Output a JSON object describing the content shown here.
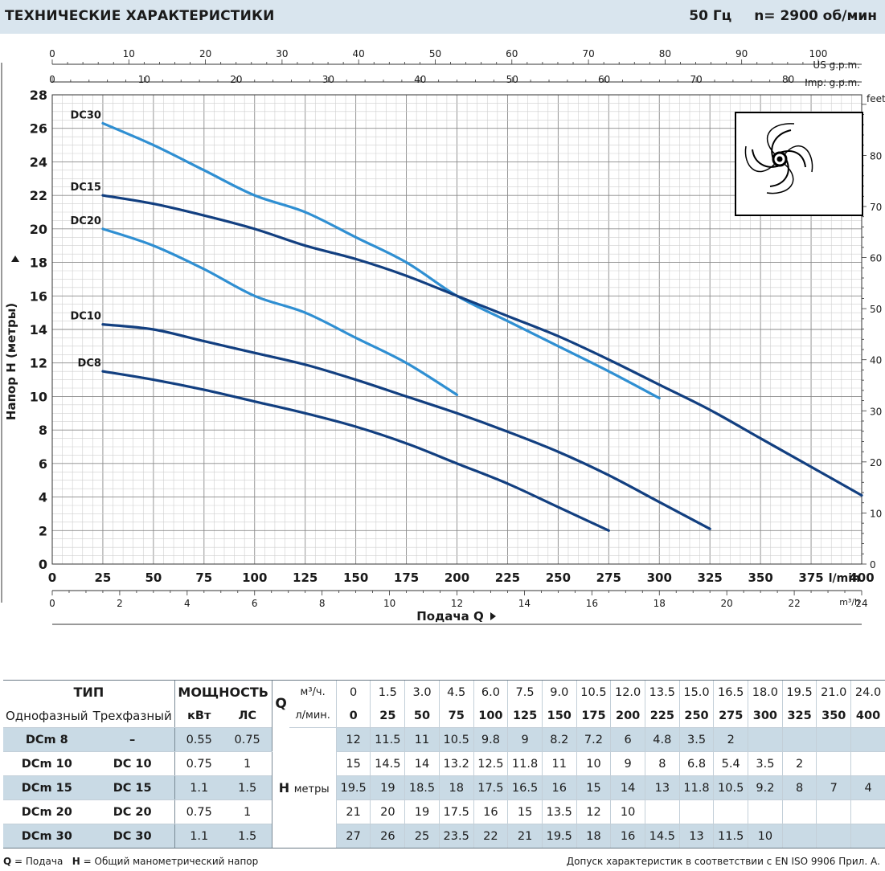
{
  "header": {
    "title": "ТЕХНИЧЕСКИЕ ХАРАКТЕРИСТИКИ",
    "freq": "50 Гц",
    "speed": "n= 2900  об/мин"
  },
  "chart_data": {
    "type": "line",
    "ylabel": "Напор H  (метры)",
    "xlabel": "Подача  Q",
    "xlim": [
      0,
      400
    ],
    "ylim": [
      0,
      28
    ],
    "x_unit": "l/min",
    "x_ticks": [
      0,
      25,
      50,
      75,
      100,
      125,
      150,
      175,
      200,
      225,
      250,
      275,
      300,
      325,
      350,
      375,
      400
    ],
    "y_ticks": [
      0,
      2,
      4,
      6,
      8,
      10,
      12,
      14,
      16,
      18,
      20,
      22,
      24,
      26,
      28
    ],
    "right_axis": {
      "unit": "feet",
      "ticks": [
        0,
        10,
        20,
        30,
        40,
        50,
        60,
        70,
        80
      ]
    },
    "top_axis_us": {
      "unit": "US g.p.m.",
      "ticks": [
        0,
        10,
        20,
        30,
        40,
        50,
        60,
        70,
        80,
        90,
        100
      ]
    },
    "top_axis_imp": {
      "unit": "Imp. g.p.m.",
      "ticks": [
        0,
        10,
        20,
        30,
        40,
        50,
        60,
        70,
        80
      ]
    },
    "bottom_axis_m3h": {
      "unit": "m³/h",
      "ticks": [
        0,
        2,
        4,
        6,
        8,
        10,
        12,
        14,
        16,
        18,
        20,
        22,
        24
      ]
    },
    "series": [
      {
        "name": "DC30",
        "color": "#2f8fd2",
        "x": [
          25,
          50,
          75,
          100,
          125,
          150,
          175,
          200,
          225,
          250,
          275,
          300
        ],
        "y": [
          26.3,
          25,
          23.5,
          22,
          21,
          19.5,
          18,
          16,
          14.5,
          13,
          11.5,
          9.9
        ]
      },
      {
        "name": "DC15",
        "color": "#123f80",
        "x": [
          25,
          50,
          75,
          100,
          125,
          150,
          175,
          200,
          225,
          250,
          275,
          300,
          325,
          350,
          375,
          400
        ],
        "y": [
          22,
          21.5,
          20.8,
          20,
          19,
          18.2,
          17.2,
          16,
          14.8,
          13.6,
          12.2,
          10.7,
          9.2,
          7.5,
          5.8,
          4.1
        ]
      },
      {
        "name": "DC20",
        "color": "#2f8fd2",
        "x": [
          25,
          50,
          75,
          100,
          125,
          150,
          175,
          200
        ],
        "y": [
          20,
          19,
          17.6,
          16,
          15,
          13.5,
          12,
          10.1
        ]
      },
      {
        "name": "DC10",
        "color": "#123f80",
        "x": [
          25,
          50,
          75,
          100,
          125,
          150,
          175,
          200,
          225,
          250,
          275,
          300,
          325
        ],
        "y": [
          14.3,
          14,
          13.3,
          12.6,
          11.9,
          11,
          10,
          9,
          7.9,
          6.7,
          5.3,
          3.7,
          2.1
        ]
      },
      {
        "name": "DC8",
        "color": "#123f80",
        "x": [
          25,
          50,
          75,
          100,
          125,
          150,
          175,
          200,
          225,
          250,
          275
        ],
        "y": [
          11.5,
          11,
          10.4,
          9.7,
          9,
          8.2,
          7.2,
          6,
          4.8,
          3.4,
          2
        ]
      }
    ]
  },
  "table": {
    "tip": "ТИП",
    "power": "МОЩНОСТЬ",
    "q_letter": "Q",
    "q_unit_m3": "м³/ч.",
    "q_unit_lmin": "л/мин.",
    "single_phase": "Однофазный",
    "three_phase": "Трехфазный",
    "kw": "кВт",
    "hp": "ЛС",
    "h_letter": "H",
    "h_unit": "метры",
    "q_m3h": [
      "0",
      "1.5",
      "3.0",
      "4.5",
      "6.0",
      "7.5",
      "9.0",
      "10.5",
      "12.0",
      "13.5",
      "15.0",
      "16.5",
      "18.0",
      "19.5",
      "21.0",
      "24.0"
    ],
    "q_lmin": [
      "0",
      "25",
      "50",
      "75",
      "100",
      "125",
      "150",
      "175",
      "200",
      "225",
      "250",
      "275",
      "300",
      "325",
      "350",
      "400"
    ],
    "rows": [
      {
        "single": "DCm 8",
        "three": "–",
        "kw": "0.55",
        "hp": "0.75",
        "h": [
          "12",
          "11.5",
          "11",
          "10.5",
          "9.8",
          "9",
          "8.2",
          "7.2",
          "6",
          "4.8",
          "3.5",
          "2",
          "",
          "",
          "",
          ""
        ]
      },
      {
        "single": "DCm 10",
        "three": "DC 10",
        "kw": "0.75",
        "hp": "1",
        "h": [
          "15",
          "14.5",
          "14",
          "13.2",
          "12.5",
          "11.8",
          "11",
          "10",
          "9",
          "8",
          "6.8",
          "5.4",
          "3.5",
          "2",
          "",
          ""
        ]
      },
      {
        "single": "DCm 15",
        "three": "DC 15",
        "kw": "1.1",
        "hp": "1.5",
        "h": [
          "19.5",
          "19",
          "18.5",
          "18",
          "17.5",
          "16.5",
          "16",
          "15",
          "14",
          "13",
          "11.8",
          "10.5",
          "9.2",
          "8",
          "7",
          "4"
        ]
      },
      {
        "single": "DCm 20",
        "three": "DC 20",
        "kw": "0.75",
        "hp": "1",
        "h": [
          "21",
          "20",
          "19",
          "17.5",
          "16",
          "15",
          "13.5",
          "12",
          "10",
          "",
          "",
          "",
          "",
          "",
          "",
          ""
        ]
      },
      {
        "single": "DCm 30",
        "three": "DC 30",
        "kw": "1.1",
        "hp": "1.5",
        "h": [
          "27",
          "26",
          "25",
          "23.5",
          "22",
          "21",
          "19.5",
          "18",
          "16",
          "14.5",
          "13",
          "11.5",
          "10",
          "",
          "",
          ""
        ]
      }
    ]
  },
  "footer": {
    "legend": "Q = Подача   H = Общий манометрический напор",
    "note": "Допуск характеристик в соответствии с EN ISO 9906 Прил. А."
  }
}
